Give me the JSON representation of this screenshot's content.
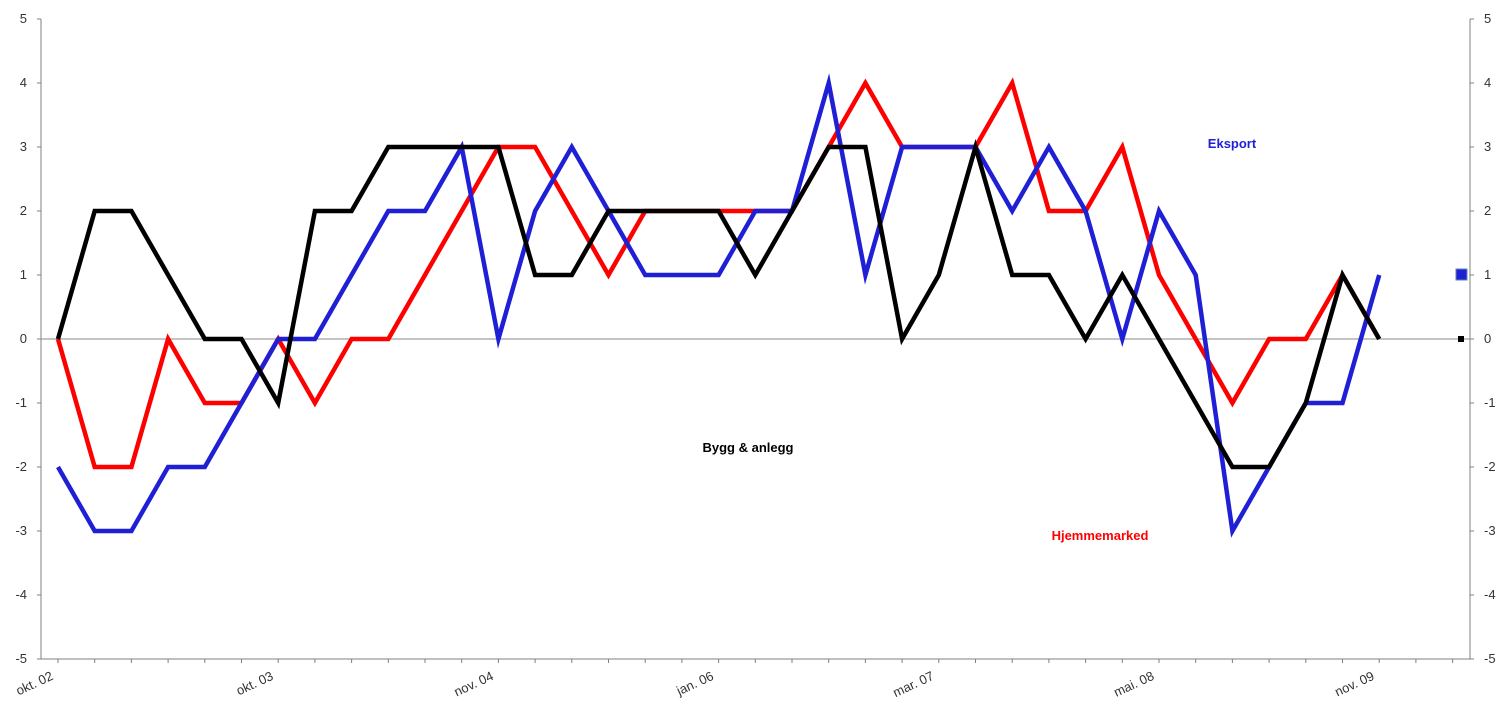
{
  "chart_data": {
    "type": "line",
    "title": "",
    "xlabel": "",
    "ylabel": "",
    "ylim": [
      -5,
      5
    ],
    "yticks": [
      5,
      4,
      3,
      2,
      1,
      0,
      -1,
      -2,
      -3,
      -4,
      -5
    ],
    "yticks_right": [
      5,
      4,
      3,
      2,
      1,
      0,
      -1,
      -2,
      -3,
      -4,
      -5
    ],
    "x_tick_labels": [
      "okt. 02",
      "okt. 03",
      "nov. 04",
      "jan. 06",
      "mar. 07",
      "mai. 08",
      "nov. 09"
    ],
    "x_tick_label_index": [
      0,
      6,
      12,
      18,
      24,
      30,
      36
    ],
    "grid": false,
    "colors": {
      "Eksport": "#1f1fd6",
      "Hjemmemarked": "#ff0000",
      "Bygg & anlegg": "#000000"
    },
    "series": [
      {
        "name": "Hjemmemarked",
        "label_text": "Hjemmemarked",
        "color": "#ff0000",
        "values": [
          0,
          -2,
          -2,
          0,
          -1,
          -1,
          0,
          -1,
          0,
          0,
          1,
          2,
          3,
          3,
          2,
          1,
          2,
          2,
          2,
          2,
          2,
          3,
          4,
          3,
          3,
          3,
          4,
          2,
          2,
          3,
          1,
          0,
          -1,
          0,
          0,
          1,
          0
        ]
      },
      {
        "name": "Eksport",
        "label_text": "Eksport",
        "color": "#1f1fd6",
        "values": [
          -2,
          -3,
          -3,
          -2,
          -2,
          -1,
          0,
          0,
          1,
          2,
          2,
          3,
          0,
          2,
          3,
          2,
          1,
          1,
          1,
          2,
          2,
          4,
          1,
          3,
          3,
          3,
          2,
          3,
          2,
          0,
          2,
          1,
          -3,
          -2,
          -1,
          -1,
          1
        ]
      },
      {
        "name": "Bygg & anlegg",
        "label_text": "Bygg & anlegg",
        "color": "#000000",
        "values": [
          0,
          2,
          2,
          1,
          0,
          0,
          -1,
          2,
          2,
          3,
          3,
          3,
          3,
          1,
          1,
          2,
          2,
          2,
          2,
          1,
          2,
          3,
          3,
          0,
          1,
          3,
          1,
          1,
          0,
          1,
          0,
          -1,
          -2,
          -2,
          -1,
          1,
          0
        ]
      }
    ]
  }
}
